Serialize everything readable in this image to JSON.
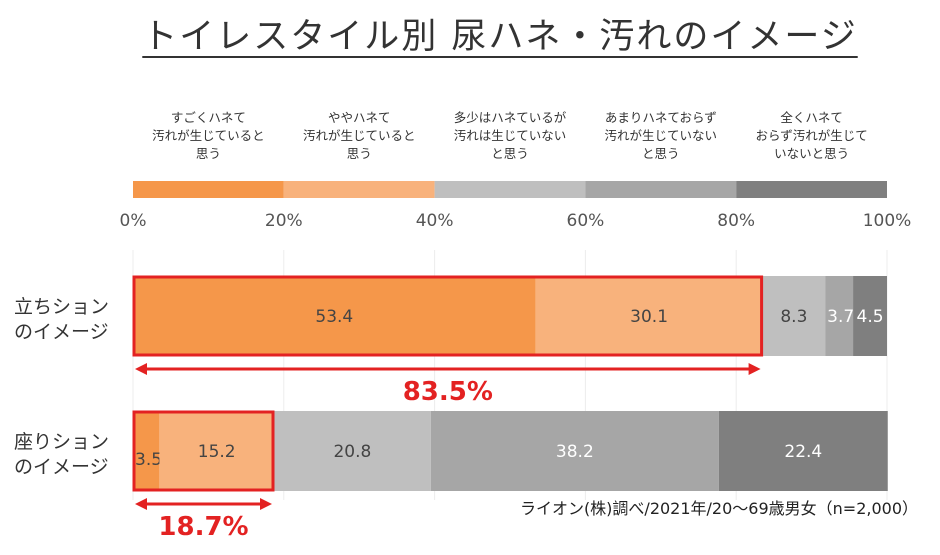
{
  "title": "トイレスタイル別 尿ハネ・汚れのイメージ",
  "chart_data": {
    "type": "stacked-bar-horizontal",
    "title": "トイレスタイル別 尿ハネ・汚れのイメージ",
    "xlim": [
      0,
      100
    ],
    "ticks": [
      "0%",
      "20%",
      "40%",
      "60%",
      "80%",
      "100%"
    ],
    "legend": [
      {
        "name": "すごくハネて汚れが生じていると思う",
        "lines": [
          "すごくハネて",
          "汚れが生じていると",
          "思う"
        ],
        "color": "#f5974a"
      },
      {
        "name": "ややハネて汚れが生じていると思う",
        "lines": [
          "ややハネて",
          "汚れが生じていると",
          "思う"
        ],
        "color": "#f8b27c"
      },
      {
        "name": "多少はハネているが汚れは生じていないと思う",
        "lines": [
          "多少はハネているが",
          "汚れは生じていない",
          "と思う"
        ],
        "color": "#bfbfbf"
      },
      {
        "name": "あまりハネておらず汚れが生じていないと思う",
        "lines": [
          "あまりハネておらず",
          "汚れが生じていない",
          "と思う"
        ],
        "color": "#a6a6a6"
      },
      {
        "name": "全くハネておらず汚れが生じていないと思う",
        "lines": [
          "全くハネて",
          "おらず汚れが生じて",
          "いないと思う"
        ],
        "color": "#7f7f7f"
      }
    ],
    "categories": [
      {
        "name": "立ちションのイメージ",
        "lines": [
          "立ちション",
          "のイメージ"
        ],
        "values": [
          53.4,
          30.1,
          8.3,
          3.7,
          4.5
        ],
        "labels": [
          "53.4",
          "30.1",
          "8.3",
          "3.7",
          "4.5"
        ],
        "highlight_total": "83.5%",
        "highlight_segments": 2
      },
      {
        "name": "座りションのイメージ",
        "lines": [
          "座りション",
          "のイメージ"
        ],
        "values": [
          3.5,
          15.2,
          20.8,
          38.2,
          22.4
        ],
        "labels": [
          "3.5",
          "15.2",
          "20.8",
          "38.2",
          "22.4"
        ],
        "highlight_total": "18.7%",
        "highlight_segments": 2
      }
    ],
    "highlight_color": "#e32222"
  },
  "source": "ライオン(株)調べ/2021年/20～69歳男女（n=2,000）"
}
